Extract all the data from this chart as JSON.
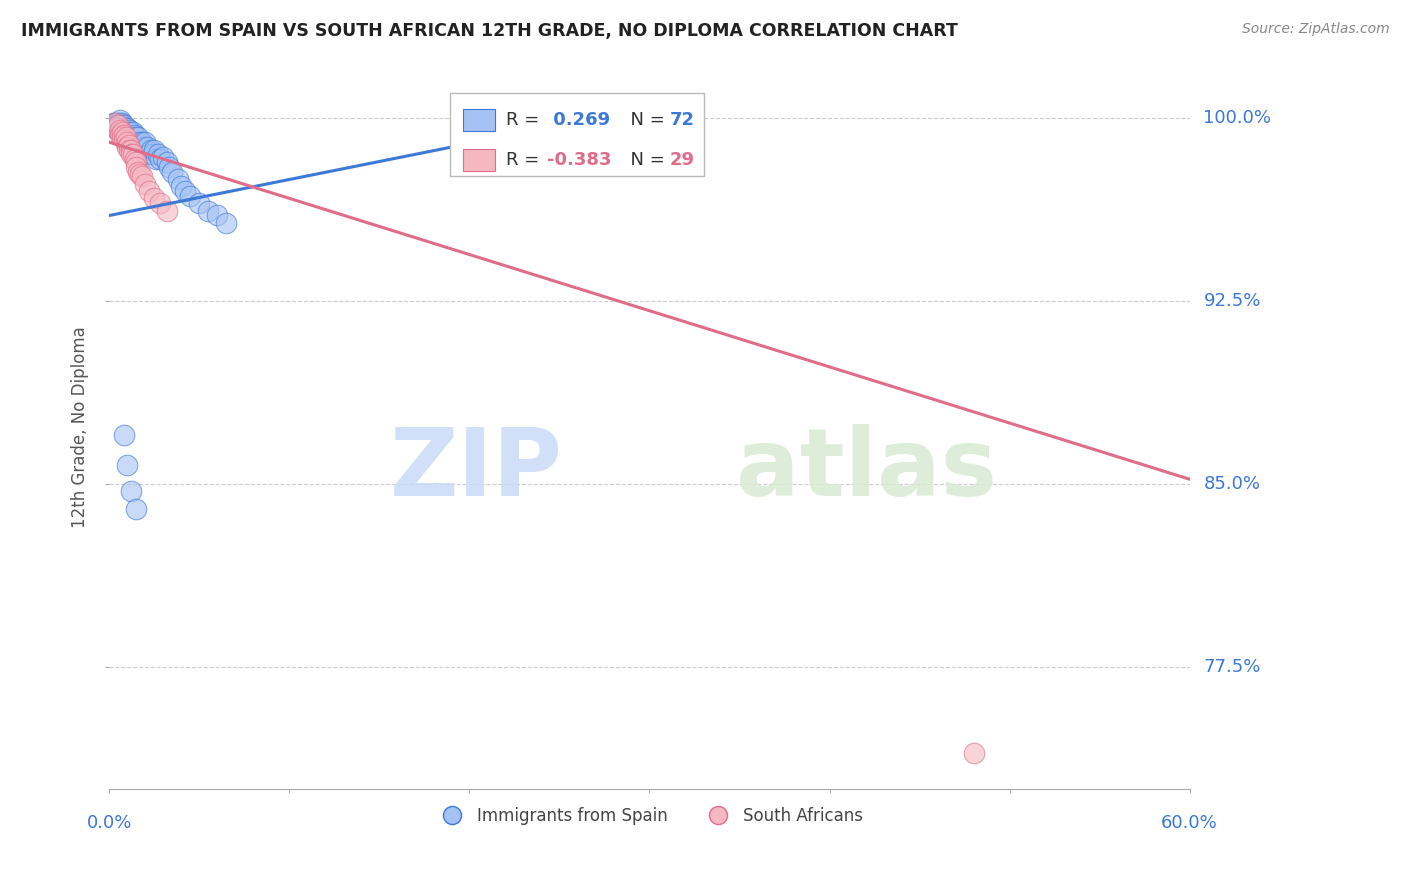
{
  "title": "IMMIGRANTS FROM SPAIN VS SOUTH AFRICAN 12TH GRADE, NO DIPLOMA CORRELATION CHART",
  "source": "Source: ZipAtlas.com",
  "ylabel": "12th Grade, No Diploma",
  "ytick_labels": [
    "100.0%",
    "92.5%",
    "85.0%",
    "77.5%"
  ],
  "ytick_values": [
    1.0,
    0.925,
    0.85,
    0.775
  ],
  "xmin": 0.0,
  "xmax": 0.6,
  "ymin": 0.725,
  "ymax": 1.022,
  "legend_r1_pre": "R = ",
  "legend_r1_val": " 0.269",
  "legend_r1_n": "N = 72",
  "legend_r2_pre": "R =",
  "legend_r2_val": "-0.383",
  "legend_r2_n": "N = 29",
  "color_blue": "#a4c2f4",
  "color_pink": "#f4b8c1",
  "color_line_blue": "#3c78d8",
  "color_line_pink": "#e06c8a",
  "watermark_zip": "ZIP",
  "watermark_atlas": "atlas",
  "blue_scatter_x": [
    0.002,
    0.003,
    0.003,
    0.003,
    0.004,
    0.004,
    0.004,
    0.005,
    0.005,
    0.005,
    0.005,
    0.006,
    0.006,
    0.006,
    0.006,
    0.006,
    0.007,
    0.007,
    0.007,
    0.007,
    0.007,
    0.008,
    0.008,
    0.008,
    0.008,
    0.009,
    0.009,
    0.009,
    0.01,
    0.01,
    0.01,
    0.011,
    0.011,
    0.011,
    0.012,
    0.012,
    0.013,
    0.013,
    0.014,
    0.014,
    0.015,
    0.015,
    0.016,
    0.016,
    0.017,
    0.018,
    0.019,
    0.02,
    0.021,
    0.022,
    0.023,
    0.024,
    0.025,
    0.026,
    0.027,
    0.028,
    0.03,
    0.032,
    0.033,
    0.035,
    0.038,
    0.04,
    0.042,
    0.045,
    0.05,
    0.055,
    0.06,
    0.065,
    0.008,
    0.01,
    0.012,
    0.015
  ],
  "blue_scatter_y": [
    0.998,
    0.998,
    0.997,
    0.996,
    0.998,
    0.997,
    0.996,
    0.998,
    0.997,
    0.996,
    0.995,
    0.999,
    0.998,
    0.997,
    0.996,
    0.995,
    0.998,
    0.997,
    0.996,
    0.995,
    0.993,
    0.997,
    0.996,
    0.995,
    0.993,
    0.996,
    0.994,
    0.992,
    0.996,
    0.994,
    0.992,
    0.995,
    0.993,
    0.991,
    0.994,
    0.992,
    0.994,
    0.991,
    0.993,
    0.99,
    0.992,
    0.989,
    0.992,
    0.988,
    0.99,
    0.99,
    0.988,
    0.99,
    0.988,
    0.985,
    0.987,
    0.985,
    0.987,
    0.983,
    0.985,
    0.983,
    0.984,
    0.982,
    0.98,
    0.978,
    0.975,
    0.972,
    0.97,
    0.968,
    0.965,
    0.962,
    0.96,
    0.957,
    0.87,
    0.858,
    0.847,
    0.84
  ],
  "pink_scatter_x": [
    0.003,
    0.004,
    0.005,
    0.006,
    0.006,
    0.007,
    0.007,
    0.008,
    0.008,
    0.009,
    0.01,
    0.01,
    0.011,
    0.011,
    0.012,
    0.012,
    0.013,
    0.014,
    0.015,
    0.015,
    0.016,
    0.017,
    0.018,
    0.02,
    0.022,
    0.025,
    0.028,
    0.032,
    0.48
  ],
  "pink_scatter_y": [
    0.998,
    0.996,
    0.997,
    0.995,
    0.993,
    0.994,
    0.992,
    0.993,
    0.991,
    0.992,
    0.99,
    0.988,
    0.989,
    0.987,
    0.987,
    0.985,
    0.985,
    0.983,
    0.982,
    0.98,
    0.978,
    0.977,
    0.976,
    0.973,
    0.97,
    0.967,
    0.965,
    0.962,
    0.74
  ],
  "blue_line_x": [
    0.0,
    0.285
  ],
  "blue_line_y": [
    0.96,
    1.002
  ],
  "pink_line_x": [
    0.0,
    0.6
  ],
  "pink_line_y": [
    0.99,
    0.852
  ]
}
